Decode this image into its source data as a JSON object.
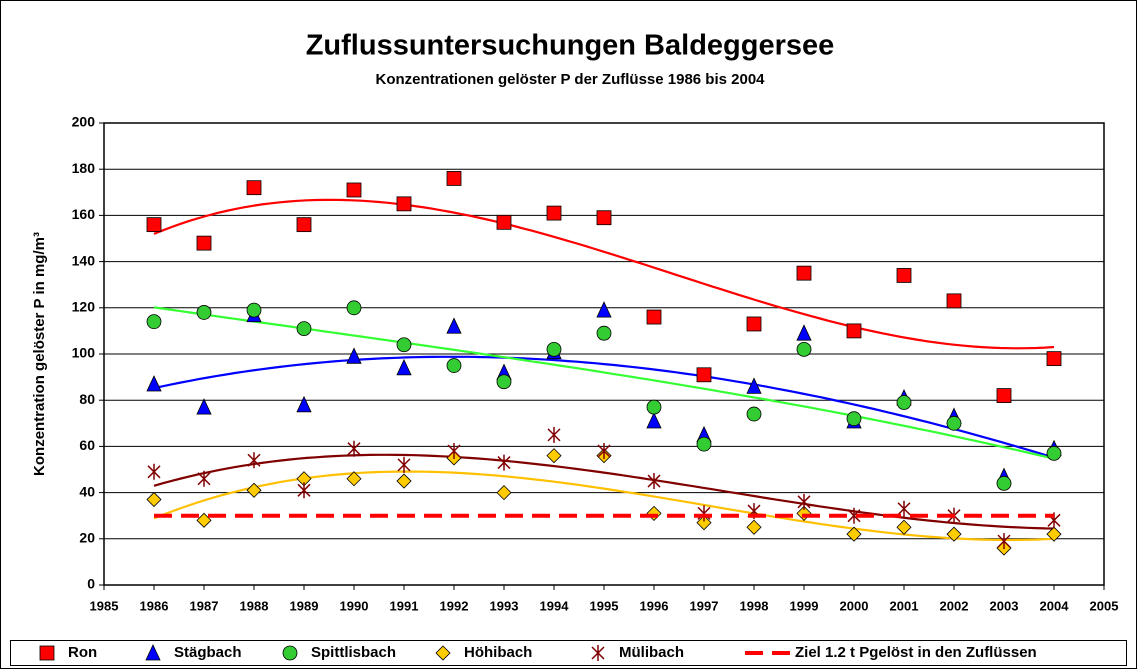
{
  "chart_data": {
    "type": "scatter",
    "title": "Zuflussuntersuchungen Baldeggersee",
    "subtitle": "Konzentrationen gelöster P der Zuflüsse 1986 bis 2004",
    "ylabel": "Konzentration gelöster P in mg/m³",
    "x": [
      1986,
      1987,
      1988,
      1989,
      1990,
      1991,
      1992,
      1993,
      1994,
      1995,
      1996,
      1997,
      1998,
      1999,
      2000,
      2001,
      2002,
      2003,
      2004
    ],
    "xlim": [
      1985,
      2005
    ],
    "xticks": [
      1985,
      1986,
      1987,
      1988,
      1989,
      1990,
      1991,
      1992,
      1993,
      1994,
      1995,
      1996,
      1997,
      1998,
      1999,
      2000,
      2001,
      2002,
      2003,
      2004,
      2005
    ],
    "ylim": [
      0,
      200
    ],
    "yticks": [
      0,
      20,
      40,
      60,
      80,
      100,
      120,
      140,
      160,
      180,
      200
    ],
    "grid": true,
    "legend": "bottom",
    "trendline": {
      "type": "polynomial",
      "order": 3
    },
    "series": [
      {
        "name": "Ron",
        "marker": "square",
        "color": "#ff0000",
        "trend_color": "#ff0000",
        "values": [
          156,
          148,
          172,
          156,
          171,
          165,
          176,
          157,
          161,
          159,
          116,
          91,
          113,
          135,
          110,
          134,
          123,
          82,
          98
        ]
      },
      {
        "name": "Stägbach",
        "marker": "triangle",
        "color": "#0000ff",
        "trend_color": "#0000ff",
        "values": [
          87,
          77,
          117,
          78,
          99,
          94,
          112,
          92,
          101,
          119,
          71,
          65,
          86,
          109,
          71,
          81,
          73,
          47,
          59
        ]
      },
      {
        "name": "Spittlisbach",
        "marker": "circle",
        "color": "#33cc33",
        "trend_color": "#33ff33",
        "values": [
          114,
          118,
          119,
          111,
          120,
          104,
          95,
          88,
          102,
          109,
          77,
          61,
          74,
          102,
          72,
          79,
          70,
          44,
          57
        ]
      },
      {
        "name": "Höhibach",
        "marker": "diamond",
        "color": "#ffcc00",
        "trend_color": "#ffc000",
        "values": [
          37,
          28,
          41,
          46,
          46,
          45,
          55,
          40,
          56,
          56,
          31,
          27,
          25,
          31,
          22,
          25,
          22,
          16,
          22
        ]
      },
      {
        "name": "Mülibach",
        "marker": "star",
        "color": "#800000",
        "trend_color": "#800000",
        "values": [
          49,
          46,
          54,
          41,
          59,
          52,
          58,
          53,
          65,
          58,
          45,
          31,
          32,
          36,
          30,
          33,
          30,
          19,
          28
        ]
      },
      {
        "name": "Ziel 1.2 t Pgelöst in den Zuflüssen",
        "marker": "dashed-line",
        "color": "#ff0000",
        "x": [
          1986,
          2004
        ],
        "values": [
          30,
          30
        ]
      }
    ]
  }
}
